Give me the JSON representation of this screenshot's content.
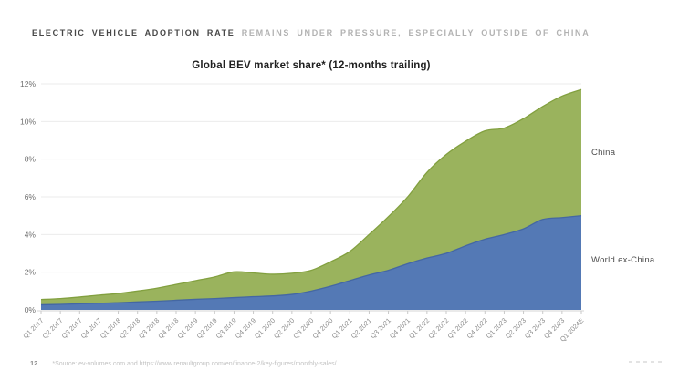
{
  "header": {
    "title_emphasis": "ELECTRIC VEHICLE ADOPTION RATE",
    "title_rest": " REMAINS UNDER PRESSURE, ESPECIALLY OUTSIDE OF CHINA"
  },
  "chart_data": {
    "type": "area",
    "stacked": true,
    "title": "Global BEV market share* (12-months trailing)",
    "xlabel": "",
    "ylabel": "",
    "ylim": [
      0,
      12
    ],
    "y_ticks": [
      "0%",
      "2%",
      "4%",
      "6%",
      "8%",
      "10%",
      "12%"
    ],
    "grid": true,
    "legend_position": "right-of-plot",
    "x_tick_rotation": 45,
    "categories": [
      "Q1 2017",
      "Q2 2017",
      "Q3 2017",
      "Q4 2017",
      "Q1 2018",
      "Q2 2018",
      "Q3 2018",
      "Q4 2018",
      "Q1 2019",
      "Q2 2019",
      "Q3 2019",
      "Q4 2019",
      "Q1 2020",
      "Q2 2020",
      "Q3 2020",
      "Q4 2020",
      "Q1 2021",
      "Q2 2021",
      "Q3 2021",
      "Q4 2021",
      "Q1 2022",
      "Q2 2022",
      "Q3 2022",
      "Q4 2022",
      "Q1 2023",
      "Q2 2023",
      "Q3 2023",
      "Q4 2023",
      "Q1 2024E"
    ],
    "series": [
      {
        "name": "World ex-China",
        "color": "#5479b5",
        "edge_color": "#4467a3",
        "values": [
          0.27,
          0.29,
          0.32,
          0.35,
          0.38,
          0.42,
          0.46,
          0.51,
          0.56,
          0.6,
          0.65,
          0.7,
          0.74,
          0.82,
          1.0,
          1.25,
          1.55,
          1.85,
          2.1,
          2.45,
          2.75,
          3.0,
          3.4,
          3.75,
          4.0,
          4.3,
          4.8,
          4.9,
          5.0
        ]
      },
      {
        "name": "China",
        "color": "#9ab35d",
        "edge_color": "#82a03f",
        "values": [
          0.28,
          0.31,
          0.36,
          0.43,
          0.49,
          0.58,
          0.69,
          0.84,
          0.99,
          1.15,
          1.37,
          1.26,
          1.15,
          1.12,
          1.1,
          1.3,
          1.55,
          2.15,
          2.85,
          3.55,
          4.55,
          5.25,
          5.55,
          5.75,
          5.65,
          5.85,
          6.0,
          6.45,
          6.7
        ]
      }
    ],
    "totals_12mo_trailing_pct": [
      0.55,
      0.6,
      0.68,
      0.78,
      0.87,
      1.0,
      1.15,
      1.35,
      1.55,
      1.75,
      2.02,
      1.96,
      1.89,
      1.94,
      2.1,
      2.55,
      3.1,
      4.0,
      4.95,
      6.0,
      7.3,
      8.25,
      8.95,
      9.5,
      9.65,
      10.15,
      10.8,
      11.35,
      11.7
    ]
  },
  "footer": {
    "page_number": "12",
    "source": "*Source: ev-volumes.com and https://www.renaultgroup.com/en/finance-2/key-figures/monthly-sales/"
  }
}
